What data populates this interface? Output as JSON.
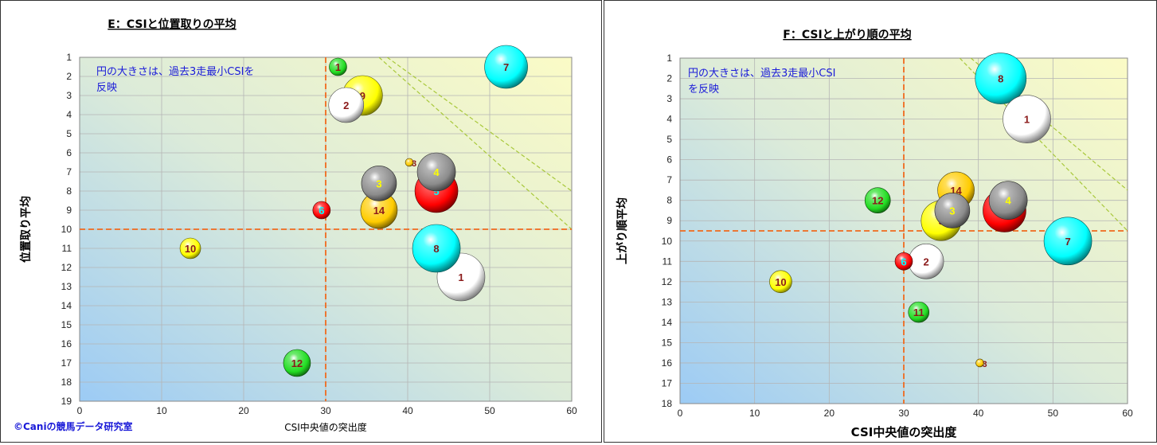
{
  "credit": "©Caniの競馬データ研究室",
  "chart_data": [
    {
      "type": "scatter",
      "title": "E：CSIと位置取りの平均",
      "xlabel": "CSI中央値の突出度",
      "ylabel": "位置取り平均",
      "note": [
        "円の大きさは、過去3走最小CSIを",
        "反映"
      ],
      "xlim": [
        0,
        60
      ],
      "ylim": [
        19,
        1
      ],
      "x_ticks": [
        "0",
        "10",
        "20",
        "30",
        "40",
        "50",
        "60"
      ],
      "y_ticks": [
        "1",
        "2",
        "3",
        "4",
        "5",
        "6",
        "7",
        "8",
        "9",
        "10",
        "11",
        "12",
        "13",
        "14",
        "15",
        "16",
        "17",
        "18",
        "19"
      ],
      "grid": true,
      "reference_lines": {
        "x": 30,
        "y": 10
      },
      "points": [
        {
          "label": "1",
          "x": 46.5,
          "y": 12.5,
          "size": 30,
          "color": "#ffffff",
          "text": "#8b1a1a"
        },
        {
          "label": "2",
          "x": 32.5,
          "y": 3.5,
          "size": 22,
          "color": "#ffffff",
          "text": "#8b1a1a"
        },
        {
          "label": "3",
          "x": 36.5,
          "y": 7.6,
          "size": 22,
          "color": "#8c8c8c",
          "text": "#ffff00"
        },
        {
          "label": "4",
          "x": 43.5,
          "y": 7.0,
          "size": 24,
          "color": "#8c8c8c",
          "text": "#ffff00"
        },
        {
          "label": "5",
          "x": 43.5,
          "y": 8.0,
          "size": 27,
          "color": "#ff0000",
          "text": "#00ffff"
        },
        {
          "label": "6",
          "x": 29.5,
          "y": 9.0,
          "size": 11,
          "color": "#ff0000",
          "text": "#00ffff"
        },
        {
          "label": "7",
          "x": 52.0,
          "y": 1.5,
          "size": 27,
          "color": "#00ffff",
          "text": "#7a1a1a"
        },
        {
          "label": "8",
          "x": 43.5,
          "y": 11.0,
          "size": 30,
          "color": "#00ffff",
          "text": "#7a1a1a"
        },
        {
          "label": "9",
          "x": 34.5,
          "y": 3.0,
          "size": 25,
          "color": "#ffff00",
          "text": "#8b1a1a"
        },
        {
          "label": "10",
          "x": 13.5,
          "y": 11.0,
          "size": 13,
          "color": "#ffff00",
          "text": "#8b1a1a"
        },
        {
          "label": "1",
          "x": 31.5,
          "y": 1.5,
          "size": 11,
          "color": "#22dd22",
          "text": "#8b1a1a"
        },
        {
          "label": "12",
          "x": 26.5,
          "y": 17.0,
          "size": 17,
          "color": "#22dd22",
          "text": "#8b1a1a"
        },
        {
          "label": "3",
          "x": 40.2,
          "y": 6.5,
          "size": 5,
          "color": "#ffcc00",
          "text": "#8b1a1a"
        },
        {
          "label": "14",
          "x": 36.5,
          "y": 9.0,
          "size": 23,
          "color": "#ffcc00",
          "text": "#8b1a1a"
        }
      ]
    },
    {
      "type": "scatter",
      "title": "F：CSIと上がり順の平均",
      "xlabel": "CSI中央値の突出度",
      "ylabel": "上がり順平均",
      "note": [
        "円の大きさは、過去3走最小CSI",
        "を反映"
      ],
      "xlim": [
        0,
        60
      ],
      "ylim": [
        18,
        1
      ],
      "x_ticks": [
        "0",
        "10",
        "20",
        "30",
        "40",
        "50",
        "60"
      ],
      "y_ticks": [
        "1",
        "2",
        "3",
        "4",
        "5",
        "6",
        "7",
        "8",
        "9",
        "10",
        "11",
        "12",
        "13",
        "14",
        "15",
        "16",
        "17",
        "18"
      ],
      "grid": true,
      "reference_lines": {
        "x": 30,
        "y": 9.5
      },
      "points": [
        {
          "label": "1",
          "x": 46.5,
          "y": 4.0,
          "size": 30,
          "color": "#ffffff",
          "text": "#8b1a1a"
        },
        {
          "label": "2",
          "x": 33.0,
          "y": 11.0,
          "size": 22,
          "color": "#ffffff",
          "text": "#8b1a1a"
        },
        {
          "label": "3",
          "x": 36.5,
          "y": 8.5,
          "size": 22,
          "color": "#8c8c8c",
          "text": "#ffff00"
        },
        {
          "label": "4",
          "x": 44.0,
          "y": 8.0,
          "size": 24,
          "color": "#8c8c8c",
          "text": "#ffff00"
        },
        {
          "label": "5",
          "x": 43.5,
          "y": 8.5,
          "size": 27,
          "color": "#ff0000",
          "text": "#00ffff"
        },
        {
          "label": "6",
          "x": 30.0,
          "y": 11.0,
          "size": 11,
          "color": "#ff0000",
          "text": "#00ffff"
        },
        {
          "label": "7",
          "x": 52.0,
          "y": 10.0,
          "size": 30,
          "color": "#00ffff",
          "text": "#7a1a1a"
        },
        {
          "label": "8",
          "x": 43.0,
          "y": 2.0,
          "size": 32,
          "color": "#00ffff",
          "text": "#7a1a1a"
        },
        {
          "label": "9",
          "x": 35.0,
          "y": 9.0,
          "size": 25,
          "color": "#ffff00",
          "text": "#8b1a1a"
        },
        {
          "label": "10",
          "x": 13.5,
          "y": 12.0,
          "size": 14,
          "color": "#ffff00",
          "text": "#8b1a1a"
        },
        {
          "label": "11",
          "x": 32.0,
          "y": 13.5,
          "size": 13,
          "color": "#22dd22",
          "text": "#8b1a1a"
        },
        {
          "label": "12",
          "x": 26.5,
          "y": 8.0,
          "size": 16,
          "color": "#22dd22",
          "text": "#8b1a1a"
        },
        {
          "label": "3",
          "x": 40.2,
          "y": 16.0,
          "size": 5,
          "color": "#ffcc00",
          "text": "#8b1a1a"
        },
        {
          "label": "14",
          "x": 37.0,
          "y": 7.5,
          "size": 23,
          "color": "#ffcc00",
          "text": "#8b1a1a"
        }
      ]
    }
  ]
}
